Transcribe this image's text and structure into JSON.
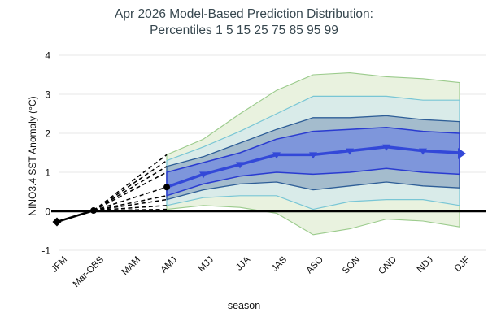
{
  "header": {
    "title_line1": "Apr 2026 Model-Based Prediction Distribution:",
    "title_line2": "Percentiles 1 5 15 25 75 85 95 99"
  },
  "colors": {
    "title_text": "#37474F",
    "axis_text": "#111111",
    "grid_line": "#E7E7E7",
    "zero_line": "#000000",
    "observed_line": "#000000",
    "fan_dashed_line": "#000000",
    "median_line": "#3348D8"
  },
  "chart_data": {
    "type": "area",
    "title": "Apr 2026 Model-Based Prediction Distribution: Percentiles 1 5 15 25 75 85 95 99",
    "xlabel": "season",
    "ylabel": "NINO3.4 SST Anomaly (°C)",
    "ylim": [
      -1,
      4
    ],
    "y_ticks": [
      -1,
      0,
      1,
      2,
      3,
      4
    ],
    "grid": "horizontal",
    "legend": "none",
    "categories": [
      "JFM",
      "Mar-OBS",
      "MAM",
      "AMJ",
      "MJJ",
      "JJA",
      "JAS",
      "ASO",
      "SON",
      "OND",
      "NDJ",
      "DJF"
    ],
    "observed": {
      "categories": [
        "JFM",
        "Mar-OBS"
      ],
      "values": [
        -0.27,
        0.02
      ],
      "markers": [
        "diamond",
        "circle"
      ]
    },
    "forecast": {
      "start_category": "AMJ",
      "categories": [
        "AMJ",
        "MJJ",
        "JJA",
        "JAS",
        "ASO",
        "SON",
        "OND",
        "NDJ",
        "DJF"
      ],
      "median": [
        0.62,
        0.95,
        1.2,
        1.45,
        1.45,
        1.55,
        1.65,
        1.55,
        1.5
      ],
      "percentiles": {
        "p1": [
          0.05,
          0.15,
          0.1,
          -0.05,
          -0.6,
          -0.45,
          -0.2,
          -0.25,
          -0.4
        ],
        "p5": [
          0.15,
          0.35,
          0.4,
          0.4,
          0.05,
          0.25,
          0.3,
          0.3,
          0.15
        ],
        "p15": [
          0.3,
          0.55,
          0.7,
          0.75,
          0.55,
          0.65,
          0.75,
          0.65,
          0.6
        ],
        "p25": [
          0.4,
          0.7,
          0.9,
          1.0,
          0.95,
          1.0,
          1.1,
          1.0,
          0.95
        ],
        "p75": [
          1.0,
          1.25,
          1.5,
          1.85,
          2.05,
          2.1,
          2.15,
          2.05,
          2.0
        ],
        "p85": [
          1.15,
          1.4,
          1.75,
          2.1,
          2.4,
          2.4,
          2.45,
          2.35,
          2.3
        ],
        "p95": [
          1.3,
          1.65,
          2.05,
          2.5,
          2.95,
          2.95,
          2.95,
          2.85,
          2.85
        ],
        "p99": [
          1.45,
          1.85,
          2.5,
          3.1,
          3.5,
          3.55,
          3.45,
          3.4,
          3.3
        ]
      }
    },
    "bands": [
      {
        "name": "percentile-band-1-99",
        "lower": "p1",
        "upper": "p99",
        "fill": "#E9F2DF",
        "stroke": "#9BCB8C",
        "stroke_width": 1.1
      },
      {
        "name": "percentile-band-5-95",
        "lower": "p5",
        "upper": "p95",
        "fill": "#D9EBE9",
        "stroke": "#79C6D5",
        "stroke_width": 1.2
      },
      {
        "name": "percentile-band-15-85",
        "lower": "p15",
        "upper": "p85",
        "fill": "#A4BCCD",
        "stroke": "#2E5E97",
        "stroke_width": 1.3
      },
      {
        "name": "percentile-band-25-75",
        "lower": "p25",
        "upper": "p75",
        "fill": "#7E96DB",
        "stroke": "#2A3BD0",
        "stroke_width": 1.5
      }
    ]
  }
}
